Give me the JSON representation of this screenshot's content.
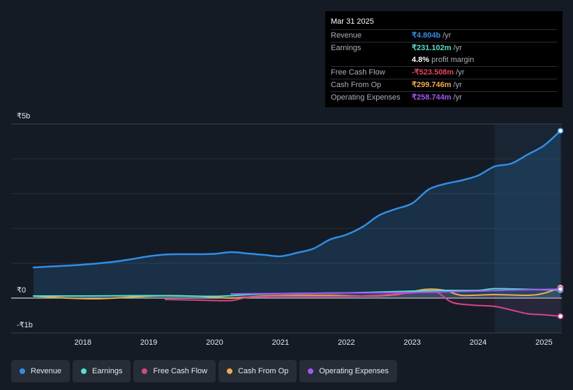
{
  "tooltip": {
    "date": "Mar 31 2025",
    "rows": [
      {
        "label": "Revenue",
        "value": "₹4.804b",
        "unit": "/yr",
        "color": "#2f8fe6"
      },
      {
        "label": "Earnings",
        "value": "₹231.102m",
        "unit": "/yr",
        "color": "#4fe3cc"
      },
      {
        "label": "",
        "value": "4.8%",
        "unit": "profit margin",
        "color": "#ffffff"
      },
      {
        "label": "Free Cash Flow",
        "value": "-₹523.508m",
        "unit": "/yr",
        "color": "#e8435e"
      },
      {
        "label": "Cash From Op",
        "value": "₹299.746m",
        "unit": "/yr",
        "color": "#f0a94a"
      },
      {
        "label": "Operating Expenses",
        "value": "₹258.744m",
        "unit": "/yr",
        "color": "#a855f7"
      }
    ]
  },
  "y_labels": {
    "top": "₹5b",
    "zero": "₹0",
    "bottom": "-₹1b"
  },
  "legend": [
    {
      "label": "Revenue",
      "color": "#2f8fe6"
    },
    {
      "label": "Earnings",
      "color": "#4fe3cc"
    },
    {
      "label": "Free Cash Flow",
      "color": "#d4468a"
    },
    {
      "label": "Cash From Op",
      "color": "#f0a94a"
    },
    {
      "label": "Operating Expenses",
      "color": "#a855f7"
    }
  ],
  "chart_data": {
    "type": "line",
    "x_ticks": [
      "2018",
      "2019",
      "2020",
      "2021",
      "2022",
      "2023",
      "2024",
      "2025"
    ],
    "ylim": [
      -1,
      5
    ],
    "y_unit": "₹b",
    "series": [
      {
        "name": "Revenue",
        "color": "#2f8fe6",
        "points": [
          [
            2017.25,
            0.88
          ],
          [
            2017.75,
            0.93
          ],
          [
            2018.0,
            0.96
          ],
          [
            2018.25,
            1.0
          ],
          [
            2018.5,
            1.05
          ],
          [
            2018.75,
            1.12
          ],
          [
            2019.0,
            1.2
          ],
          [
            2019.25,
            1.25
          ],
          [
            2019.5,
            1.26
          ],
          [
            2019.75,
            1.26
          ],
          [
            2020.0,
            1.27
          ],
          [
            2020.25,
            1.32
          ],
          [
            2020.5,
            1.28
          ],
          [
            2020.75,
            1.24
          ],
          [
            2021.0,
            1.2
          ],
          [
            2021.25,
            1.3
          ],
          [
            2021.5,
            1.42
          ],
          [
            2021.75,
            1.68
          ],
          [
            2022.0,
            1.82
          ],
          [
            2022.25,
            2.05
          ],
          [
            2022.5,
            2.38
          ],
          [
            2022.75,
            2.56
          ],
          [
            2023.0,
            2.72
          ],
          [
            2023.25,
            3.12
          ],
          [
            2023.5,
            3.28
          ],
          [
            2023.75,
            3.38
          ],
          [
            2024.0,
            3.52
          ],
          [
            2024.25,
            3.78
          ],
          [
            2024.5,
            3.86
          ],
          [
            2024.75,
            4.12
          ],
          [
            2025.0,
            4.38
          ],
          [
            2025.25,
            4.804
          ]
        ]
      },
      {
        "name": "Earnings",
        "color": "#4fe3cc",
        "points": [
          [
            2017.25,
            0.06
          ],
          [
            2018.0,
            0.06
          ],
          [
            2019.0,
            0.07
          ],
          [
            2020.0,
            0.05
          ],
          [
            2020.5,
            0.1
          ],
          [
            2021.0,
            0.13
          ],
          [
            2022.0,
            0.15
          ],
          [
            2023.0,
            0.2
          ],
          [
            2023.5,
            0.22
          ],
          [
            2024.0,
            0.22
          ],
          [
            2024.25,
            0.27
          ],
          [
            2024.75,
            0.25
          ],
          [
            2025.25,
            0.231
          ]
        ]
      },
      {
        "name": "Free Cash Flow",
        "color": "#d4468a",
        "points": [
          [
            2019.25,
            -0.04
          ],
          [
            2019.75,
            -0.06
          ],
          [
            2020.25,
            -0.07
          ],
          [
            2020.5,
            0.02
          ],
          [
            2021.0,
            0.05
          ],
          [
            2022.0,
            0.05
          ],
          [
            2022.5,
            0.08
          ],
          [
            2023.0,
            0.15
          ],
          [
            2023.35,
            0.18
          ],
          [
            2023.6,
            -0.12
          ],
          [
            2023.9,
            -0.2
          ],
          [
            2024.25,
            -0.24
          ],
          [
            2024.5,
            -0.34
          ],
          [
            2024.75,
            -0.45
          ],
          [
            2025.0,
            -0.48
          ],
          [
            2025.25,
            -0.5235
          ]
        ]
      },
      {
        "name": "Cash From Op",
        "color": "#f0a94a",
        "points": [
          [
            2017.25,
            0.06
          ],
          [
            2017.75,
            0.0
          ],
          [
            2018.25,
            -0.02
          ],
          [
            2018.75,
            0.03
          ],
          [
            2019.25,
            0.07
          ],
          [
            2019.75,
            0.05
          ],
          [
            2020.25,
            0.0
          ],
          [
            2020.75,
            0.06
          ],
          [
            2021.25,
            0.08
          ],
          [
            2021.75,
            0.08
          ],
          [
            2022.25,
            0.06
          ],
          [
            2022.75,
            0.1
          ],
          [
            2023.2,
            0.25
          ],
          [
            2023.5,
            0.22
          ],
          [
            2023.75,
            0.08
          ],
          [
            2024.25,
            0.1
          ],
          [
            2024.75,
            0.08
          ],
          [
            2025.0,
            0.14
          ],
          [
            2025.25,
            0.2997
          ]
        ]
      },
      {
        "name": "Operating Expenses",
        "color": "#a855f7",
        "points": [
          [
            2020.25,
            0.12
          ],
          [
            2021.0,
            0.13
          ],
          [
            2022.0,
            0.15
          ],
          [
            2023.0,
            0.16
          ],
          [
            2024.0,
            0.2
          ],
          [
            2024.5,
            0.23
          ],
          [
            2025.25,
            0.2587
          ]
        ]
      }
    ]
  }
}
